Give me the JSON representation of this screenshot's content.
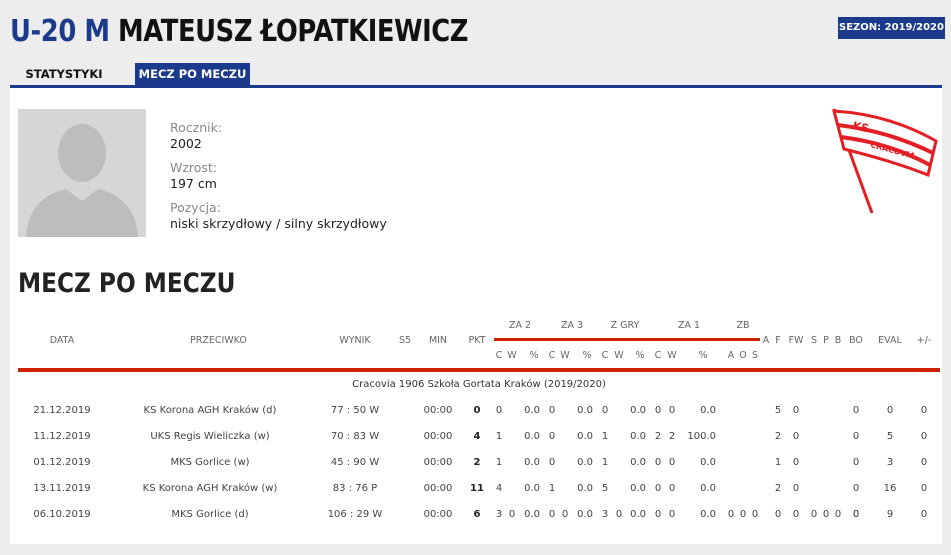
{
  "header": {
    "league": "U-20 M",
    "player_name": "MATEUSZ ŁOPATKIEWICZ",
    "season": "SEZON: 2019/2020"
  },
  "tabs": [
    {
      "label": "STATYSTYKI",
      "active": false
    },
    {
      "label": "MECZ PO MECZU",
      "active": true
    }
  ],
  "player": {
    "birth_label": "Rocznik:",
    "birth": "2002",
    "height_label": "Wzrost:",
    "height": "197 cm",
    "position_label": "Pozycja:",
    "position": "niski skrzydłowy / silny skrzydłowy"
  },
  "club_logo": {
    "text_top": "KS",
    "text_bottom": "CRACOVIA",
    "color": "#e31e24"
  },
  "section_title": "MECZ PO MECZU",
  "table": {
    "headers": {
      "data": "DATA",
      "przeciwko": "PRZECIWKO",
      "wynik": "WYNIK",
      "s5": "S5",
      "min": "MIN",
      "pkt": "PKT",
      "za2": "ZA 2",
      "za3": "ZA 3",
      "zgry": "Z GRY",
      "za1": "ZA 1",
      "zb": "ZB",
      "a": "A",
      "f": "F",
      "fw": "FW",
      "s": "S",
      "p": "P",
      "b": "B",
      "bo": "BO",
      "eval": "EVAL",
      "pm": "+/-",
      "c": "C",
      "w": "W",
      "pct": "%",
      "zb_a": "A",
      "zb_o": "O",
      "zb_s": "S"
    },
    "team_row": "Cracovia 1906 Szkoła Gortata Kraków (2019/2020)",
    "rows": [
      {
        "date": "21.12.2019",
        "opp": "KS Korona AGH Kraków (d)",
        "res": "77 : 50 W",
        "min": "00:00",
        "pkt": "0",
        "za2": [
          "0",
          "",
          "0.0"
        ],
        "za3": [
          "0",
          "",
          "0.0"
        ],
        "zgry": [
          "0",
          "",
          "0.0"
        ],
        "za1": [
          "0",
          "0",
          "0.0"
        ],
        "zb": [
          "",
          "",
          ""
        ],
        "a": "5",
        "f": "0",
        "fw": "",
        "s": "",
        "p": "",
        "b": "",
        "bo": "0",
        "eval": "0",
        "pm": "0"
      },
      {
        "date": "11.12.2019",
        "opp": "UKS Regis Wieliczka (w)",
        "res": "70 : 83 W",
        "min": "00:00",
        "pkt": "4",
        "za2": [
          "1",
          "",
          "0.0"
        ],
        "za3": [
          "0",
          "",
          "0.0"
        ],
        "zgry": [
          "1",
          "",
          "0.0"
        ],
        "za1": [
          "2",
          "2",
          "100.0"
        ],
        "zb": [
          "",
          "",
          ""
        ],
        "a": "2",
        "f": "0",
        "fw": "",
        "s": "",
        "p": "",
        "b": "",
        "bo": "0",
        "eval": "5",
        "pm": "0"
      },
      {
        "date": "01.12.2019",
        "opp": "MKS Gorlice (w)",
        "res": "45 : 90 W",
        "min": "00:00",
        "pkt": "2",
        "za2": [
          "1",
          "",
          "0.0"
        ],
        "za3": [
          "0",
          "",
          "0.0"
        ],
        "zgry": [
          "1",
          "",
          "0.0"
        ],
        "za1": [
          "0",
          "0",
          "0.0"
        ],
        "zb": [
          "",
          "",
          ""
        ],
        "a": "1",
        "f": "0",
        "fw": "",
        "s": "",
        "p": "",
        "b": "",
        "bo": "0",
        "eval": "3",
        "pm": "0"
      },
      {
        "date": "13.11.2019",
        "opp": "KS Korona AGH Kraków (w)",
        "res": "83 : 76 P",
        "min": "00:00",
        "pkt": "11",
        "za2": [
          "4",
          "",
          "0.0"
        ],
        "za3": [
          "1",
          "",
          "0.0"
        ],
        "zgry": [
          "5",
          "",
          "0.0"
        ],
        "za1": [
          "0",
          "0",
          "0.0"
        ],
        "zb": [
          "",
          "",
          ""
        ],
        "a": "2",
        "f": "0",
        "fw": "",
        "s": "",
        "p": "",
        "b": "",
        "bo": "0",
        "eval": "16",
        "pm": "0"
      },
      {
        "date": "06.10.2019",
        "opp": "MKS Gorlice (d)",
        "res": "106 : 29 W",
        "min": "00:00",
        "pkt": "6",
        "za2": [
          "3",
          "0",
          "0.0"
        ],
        "za3": [
          "0",
          "0",
          "0.0"
        ],
        "zgry": [
          "3",
          "0",
          "0.0"
        ],
        "za1": [
          "0",
          "0",
          "0.0"
        ],
        "zb": [
          "0",
          "0",
          "0"
        ],
        "a": "0",
        "f": "0",
        "fw": "0",
        "s": "0",
        "p": "0",
        "b": "0",
        "bo": "0",
        "eval": "9",
        "pm": "0"
      }
    ]
  }
}
